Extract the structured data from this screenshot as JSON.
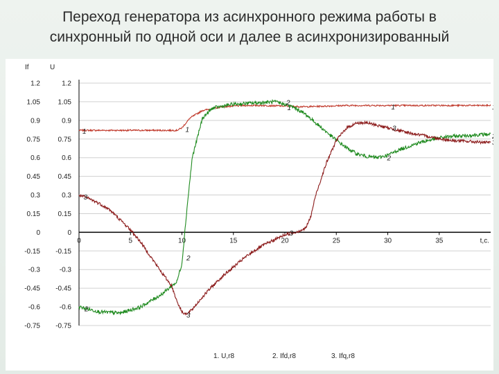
{
  "title": {
    "line1": "Переход генератора из асинхронного режима работы в",
    "line2": "синхронный по одной оси и далее в асинхронизированный"
  },
  "colors": {
    "background": "#e6ede8",
    "panel": "#ffffff",
    "series1": "#c0392b",
    "series2": "#1e8a1e",
    "series3": "#8b1a1a",
    "axis": "#000000"
  },
  "chart_data": {
    "type": "line",
    "axis_header_left": "If",
    "axis_header_right": "U",
    "xlabel": "t,c.",
    "xlim": [
      0,
      40
    ],
    "ylim": [
      -0.75,
      1.2
    ],
    "x_ticks": [
      0,
      5,
      10,
      15,
      20,
      25,
      30,
      35
    ],
    "x_tick_labels": [
      "0",
      "5",
      "10",
      "15",
      "20",
      "25",
      "30",
      "35"
    ],
    "y_ticks": [
      1.2,
      1.05,
      0.9,
      0.75,
      0.6,
      0.45,
      0.3,
      0.15,
      0,
      -0.15,
      -0.3,
      -0.45,
      -0.6,
      -0.75
    ],
    "y_tick_labels_left": [
      "1.2",
      "1.05",
      "0.9",
      "0.75",
      "0.6",
      "0.45",
      "0.3",
      "0.15",
      "0",
      "-0.15",
      "-0.3",
      "-0.45",
      "-0.6",
      "-0.75"
    ],
    "y_tick_labels_right": [
      "1.2",
      "1.05",
      "0.9",
      "0.75",
      "0.6",
      "0.45",
      "0.3",
      "0.15",
      "0",
      "-0.15",
      "-0.3",
      "-0.45",
      "-0.6",
      "-0.75"
    ],
    "grid": "horizontal",
    "legend_position": "bottom-center",
    "series": [
      {
        "name": "1. U,r8",
        "marker": "1",
        "color": "#c0392b",
        "points": [
          [
            0,
            0.82
          ],
          [
            9.5,
            0.82
          ],
          [
            10,
            0.84
          ],
          [
            10.8,
            0.92
          ],
          [
            12,
            0.98
          ],
          [
            14,
            1.01
          ],
          [
            16,
            1.02
          ],
          [
            18,
            1.02
          ],
          [
            20,
            1.015
          ],
          [
            22,
            1.01
          ],
          [
            24,
            1.015
          ],
          [
            26,
            1.02
          ],
          [
            30,
            1.02
          ],
          [
            35,
            1.02
          ],
          [
            40,
            1.02
          ]
        ],
        "markers": [
          [
            0.2,
            0.81
          ],
          [
            10.2,
            0.825
          ],
          [
            20.1,
            1.0
          ],
          [
            30.2,
            1.005
          ],
          [
            40,
            1.005
          ]
        ]
      },
      {
        "name": "2. Ifd,r8",
        "marker": "2",
        "color": "#1e8a1e",
        "points": [
          [
            0,
            -0.6
          ],
          [
            2,
            -0.64
          ],
          [
            4,
            -0.65
          ],
          [
            6,
            -0.6
          ],
          [
            8,
            -0.5
          ],
          [
            9.5,
            -0.4
          ],
          [
            10,
            -0.25
          ],
          [
            10.5,
            0.2
          ],
          [
            11,
            0.6
          ],
          [
            12,
            0.92
          ],
          [
            13,
            1.0
          ],
          [
            15,
            1.03
          ],
          [
            17,
            1.04
          ],
          [
            19,
            1.05
          ],
          [
            20,
            1.03
          ],
          [
            21,
            1.0
          ],
          [
            22,
            0.95
          ],
          [
            23,
            0.88
          ],
          [
            24,
            0.81
          ],
          [
            25,
            0.74
          ],
          [
            26,
            0.68
          ],
          [
            27,
            0.63
          ],
          [
            28,
            0.61
          ],
          [
            29,
            0.6
          ],
          [
            30,
            0.62
          ],
          [
            31,
            0.66
          ],
          [
            32,
            0.69
          ],
          [
            33,
            0.72
          ],
          [
            34,
            0.74
          ],
          [
            35,
            0.76
          ],
          [
            36,
            0.77
          ],
          [
            38,
            0.78
          ],
          [
            40,
            0.79
          ]
        ],
        "markers": [
          [
            0.4,
            -0.62
          ],
          [
            10.3,
            -0.21
          ],
          [
            20.0,
            1.04
          ],
          [
            29.8,
            0.595
          ],
          [
            40,
            0.77
          ]
        ]
      },
      {
        "name": "3. Ifq,r8",
        "marker": "3",
        "color": "#8b1a1a",
        "points": [
          [
            0,
            0.3
          ],
          [
            1,
            0.27
          ],
          [
            2,
            0.23
          ],
          [
            3,
            0.18
          ],
          [
            4,
            0.1
          ],
          [
            5,
            0.02
          ],
          [
            6,
            -0.08
          ],
          [
            7,
            -0.2
          ],
          [
            8,
            -0.32
          ],
          [
            9,
            -0.43
          ],
          [
            9.5,
            -0.55
          ],
          [
            10,
            -0.64
          ],
          [
            10.5,
            -0.66
          ],
          [
            11,
            -0.62
          ],
          [
            12,
            -0.52
          ],
          [
            13,
            -0.43
          ],
          [
            14,
            -0.35
          ],
          [
            15,
            -0.28
          ],
          [
            16,
            -0.21
          ],
          [
            17,
            -0.15
          ],
          [
            18,
            -0.1
          ],
          [
            19,
            -0.06
          ],
          [
            20,
            -0.02
          ],
          [
            21,
            0.0
          ],
          [
            22,
            0.03
          ],
          [
            22.5,
            0.12
          ],
          [
            23,
            0.3
          ],
          [
            24,
            0.55
          ],
          [
            25,
            0.74
          ],
          [
            26,
            0.84
          ],
          [
            27,
            0.88
          ],
          [
            28,
            0.88
          ],
          [
            29,
            0.86
          ],
          [
            30,
            0.84
          ],
          [
            31,
            0.82
          ],
          [
            32,
            0.8
          ],
          [
            34,
            0.77
          ],
          [
            36,
            0.74
          ],
          [
            38,
            0.73
          ],
          [
            40,
            0.72
          ]
        ],
        "markers": [
          [
            0.3,
            0.28
          ],
          [
            10.3,
            -0.67
          ],
          [
            20.3,
            -0.01
          ],
          [
            30.3,
            0.835
          ],
          [
            40,
            0.72
          ]
        ]
      }
    ]
  }
}
